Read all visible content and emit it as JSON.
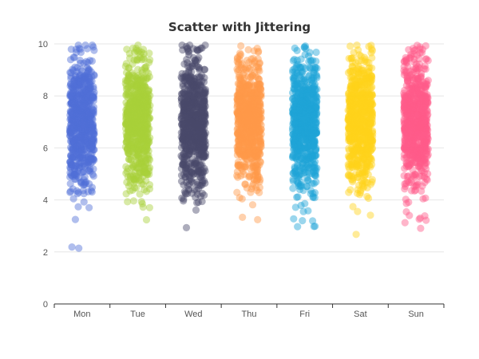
{
  "chart_data": {
    "type": "scatter",
    "title": "Scatter with Jittering",
    "categories": [
      "Mon",
      "Tue",
      "Wed",
      "Thu",
      "Fri",
      "Sat",
      "Sun"
    ],
    "ylim": [
      0,
      10
    ],
    "y_ticks": [
      0,
      2,
      4,
      6,
      8,
      10
    ],
    "grid": true,
    "legend": "none",
    "jitter_width": 0.4,
    "points_per_category": 700,
    "series": [
      {
        "category": "Mon",
        "color": "#4f6fd8",
        "center": 7.0,
        "spread": 1.2
      },
      {
        "category": "Tue",
        "color": "#a8d13a",
        "center": 7.0,
        "spread": 1.2
      },
      {
        "category": "Wed",
        "color": "#4a4a6a",
        "center": 6.9,
        "spread": 1.3
      },
      {
        "category": "Thu",
        "color": "#ff9a4a",
        "center": 7.0,
        "spread": 1.2
      },
      {
        "category": "Fri",
        "color": "#1ea3d8",
        "center": 7.0,
        "spread": 1.2
      },
      {
        "category": "Sat",
        "color": "#ffd21a",
        "center": 7.0,
        "spread": 1.2
      },
      {
        "category": "Sun",
        "color": "#ff5a8a",
        "center": 7.0,
        "spread": 1.2
      }
    ]
  }
}
